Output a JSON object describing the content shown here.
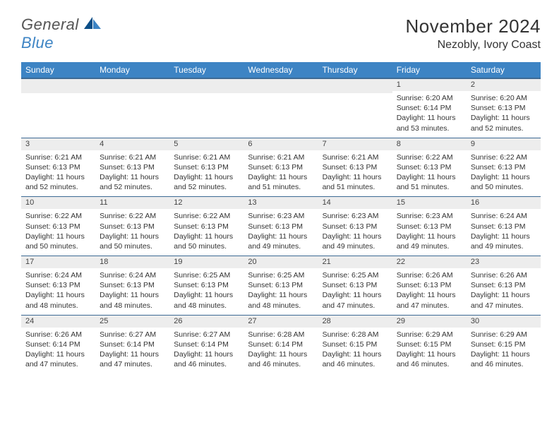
{
  "logo": {
    "word1": "General",
    "word2": "Blue"
  },
  "header": {
    "month_title": "November 2024",
    "location": "Nezobly, Ivory Coast"
  },
  "style": {
    "accent": "#3d84c4",
    "border": "#3d6a94",
    "daynum_bg": "#ededed",
    "text": "#333333",
    "title_fontsize": 26,
    "location_fontsize": 16,
    "th_fontsize": 12,
    "cell_fontsize": 10.5
  },
  "days_of_week": [
    "Sunday",
    "Monday",
    "Tuesday",
    "Wednesday",
    "Thursday",
    "Friday",
    "Saturday"
  ],
  "weeks": [
    [
      {
        "blank": true
      },
      {
        "blank": true
      },
      {
        "blank": true
      },
      {
        "blank": true
      },
      {
        "blank": true
      },
      {
        "n": "1",
        "sunrise": "6:20 AM",
        "sunset": "6:14 PM",
        "daylight": "11 hours and 53 minutes."
      },
      {
        "n": "2",
        "sunrise": "6:20 AM",
        "sunset": "6:13 PM",
        "daylight": "11 hours and 52 minutes."
      }
    ],
    [
      {
        "n": "3",
        "sunrise": "6:21 AM",
        "sunset": "6:13 PM",
        "daylight": "11 hours and 52 minutes."
      },
      {
        "n": "4",
        "sunrise": "6:21 AM",
        "sunset": "6:13 PM",
        "daylight": "11 hours and 52 minutes."
      },
      {
        "n": "5",
        "sunrise": "6:21 AM",
        "sunset": "6:13 PM",
        "daylight": "11 hours and 52 minutes."
      },
      {
        "n": "6",
        "sunrise": "6:21 AM",
        "sunset": "6:13 PM",
        "daylight": "11 hours and 51 minutes."
      },
      {
        "n": "7",
        "sunrise": "6:21 AM",
        "sunset": "6:13 PM",
        "daylight": "11 hours and 51 minutes."
      },
      {
        "n": "8",
        "sunrise": "6:22 AM",
        "sunset": "6:13 PM",
        "daylight": "11 hours and 51 minutes."
      },
      {
        "n": "9",
        "sunrise": "6:22 AM",
        "sunset": "6:13 PM",
        "daylight": "11 hours and 50 minutes."
      }
    ],
    [
      {
        "n": "10",
        "sunrise": "6:22 AM",
        "sunset": "6:13 PM",
        "daylight": "11 hours and 50 minutes."
      },
      {
        "n": "11",
        "sunrise": "6:22 AM",
        "sunset": "6:13 PM",
        "daylight": "11 hours and 50 minutes."
      },
      {
        "n": "12",
        "sunrise": "6:22 AM",
        "sunset": "6:13 PM",
        "daylight": "11 hours and 50 minutes."
      },
      {
        "n": "13",
        "sunrise": "6:23 AM",
        "sunset": "6:13 PM",
        "daylight": "11 hours and 49 minutes."
      },
      {
        "n": "14",
        "sunrise": "6:23 AM",
        "sunset": "6:13 PM",
        "daylight": "11 hours and 49 minutes."
      },
      {
        "n": "15",
        "sunrise": "6:23 AM",
        "sunset": "6:13 PM",
        "daylight": "11 hours and 49 minutes."
      },
      {
        "n": "16",
        "sunrise": "6:24 AM",
        "sunset": "6:13 PM",
        "daylight": "11 hours and 49 minutes."
      }
    ],
    [
      {
        "n": "17",
        "sunrise": "6:24 AM",
        "sunset": "6:13 PM",
        "daylight": "11 hours and 48 minutes."
      },
      {
        "n": "18",
        "sunrise": "6:24 AM",
        "sunset": "6:13 PM",
        "daylight": "11 hours and 48 minutes."
      },
      {
        "n": "19",
        "sunrise": "6:25 AM",
        "sunset": "6:13 PM",
        "daylight": "11 hours and 48 minutes."
      },
      {
        "n": "20",
        "sunrise": "6:25 AM",
        "sunset": "6:13 PM",
        "daylight": "11 hours and 48 minutes."
      },
      {
        "n": "21",
        "sunrise": "6:25 AM",
        "sunset": "6:13 PM",
        "daylight": "11 hours and 47 minutes."
      },
      {
        "n": "22",
        "sunrise": "6:26 AM",
        "sunset": "6:13 PM",
        "daylight": "11 hours and 47 minutes."
      },
      {
        "n": "23",
        "sunrise": "6:26 AM",
        "sunset": "6:13 PM",
        "daylight": "11 hours and 47 minutes."
      }
    ],
    [
      {
        "n": "24",
        "sunrise": "6:26 AM",
        "sunset": "6:14 PM",
        "daylight": "11 hours and 47 minutes."
      },
      {
        "n": "25",
        "sunrise": "6:27 AM",
        "sunset": "6:14 PM",
        "daylight": "11 hours and 47 minutes."
      },
      {
        "n": "26",
        "sunrise": "6:27 AM",
        "sunset": "6:14 PM",
        "daylight": "11 hours and 46 minutes."
      },
      {
        "n": "27",
        "sunrise": "6:28 AM",
        "sunset": "6:14 PM",
        "daylight": "11 hours and 46 minutes."
      },
      {
        "n": "28",
        "sunrise": "6:28 AM",
        "sunset": "6:15 PM",
        "daylight": "11 hours and 46 minutes."
      },
      {
        "n": "29",
        "sunrise": "6:29 AM",
        "sunset": "6:15 PM",
        "daylight": "11 hours and 46 minutes."
      },
      {
        "n": "30",
        "sunrise": "6:29 AM",
        "sunset": "6:15 PM",
        "daylight": "11 hours and 46 minutes."
      }
    ]
  ],
  "labels": {
    "sunrise": "Sunrise:",
    "sunset": "Sunset:",
    "daylight": "Daylight:"
  }
}
